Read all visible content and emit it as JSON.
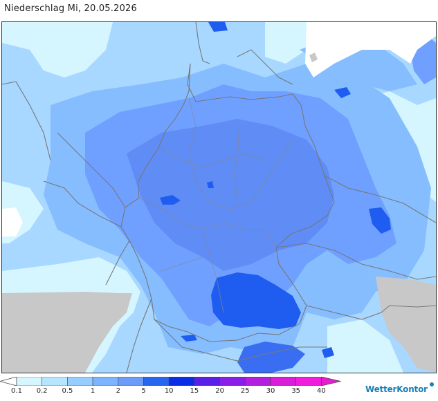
{
  "map": {
    "title": "Niederschlag Mi, 20.05.2026",
    "colors": {
      "sea_outside": "#c8c8c8",
      "lightest": "#d6f6ff",
      "light": "#a8d8ff",
      "light_mid": "#86bdff",
      "mid": "#6fa0ff",
      "core": "#5f8cf5",
      "strong": "#1f5df0",
      "border": "#777777"
    }
  },
  "legend": {
    "labels": [
      "0.1",
      "0.2",
      "0.5",
      "1",
      "2",
      "5",
      "10",
      "15",
      "20",
      "25",
      "30",
      "35",
      "40"
    ],
    "colors": [
      "#ffffff",
      "#d6f6ff",
      "#b6e6ff",
      "#96ceff",
      "#7cb4ff",
      "#6a9cf8",
      "#2866f0",
      "#0a2ee8",
      "#5a1fe8",
      "#8a1ee8",
      "#b41ee0",
      "#d81ed8",
      "#f01edc",
      "#e61ecf"
    ]
  },
  "brand": {
    "name": "WetterKontor"
  }
}
